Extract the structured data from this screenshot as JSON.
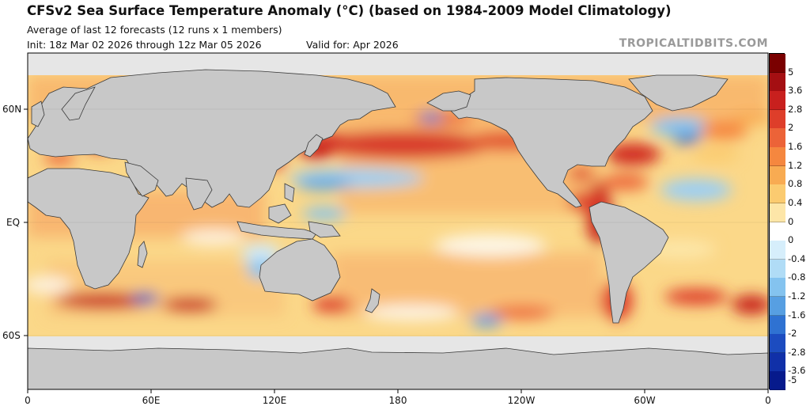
{
  "header": {
    "title": "CFSv2 Sea Surface Temperature Anomaly (°C) (based on 1984-2009 Model Climatology)",
    "subtitle": "Average of last 12 forecasts (12 runs x 1 members)",
    "init": "Init: 18z Mar 02 2026 through 12z Mar 05 2026",
    "valid": "Valid for: Apr 2026",
    "brand": "TROPICALTIDBITS.COM"
  },
  "map": {
    "lat_labels": [
      "60N",
      "EQ",
      "60S"
    ],
    "lon_labels": [
      "0",
      "60E",
      "120E",
      "180",
      "120W",
      "60W",
      "0"
    ],
    "colors": {
      "land": "#c8c8c8",
      "ice": "#e6e6e6",
      "border": "#3a3a3a"
    }
  },
  "colorbar": {
    "labels": [
      "5",
      "3.6",
      "2.8",
      "2",
      "1.6",
      "1.2",
      "0.8",
      "0.4",
      "0",
      "0",
      "-0.4",
      "-0.8",
      "-1.2",
      "-1.6",
      "-2",
      "-2.8",
      "-3.6",
      "-5"
    ],
    "colors": [
      "#7a0000",
      "#a40f12",
      "#c8201e",
      "#de3e2a",
      "#ec6338",
      "#f5873f",
      "#f8ab52",
      "#fbcb70",
      "#fde6a8",
      "#ffffff",
      "#d6eefb",
      "#b0dcf6",
      "#84c3ef",
      "#579fe2",
      "#2f72d2",
      "#1c4cc0",
      "#1030a8",
      "#061a8c"
    ]
  }
}
